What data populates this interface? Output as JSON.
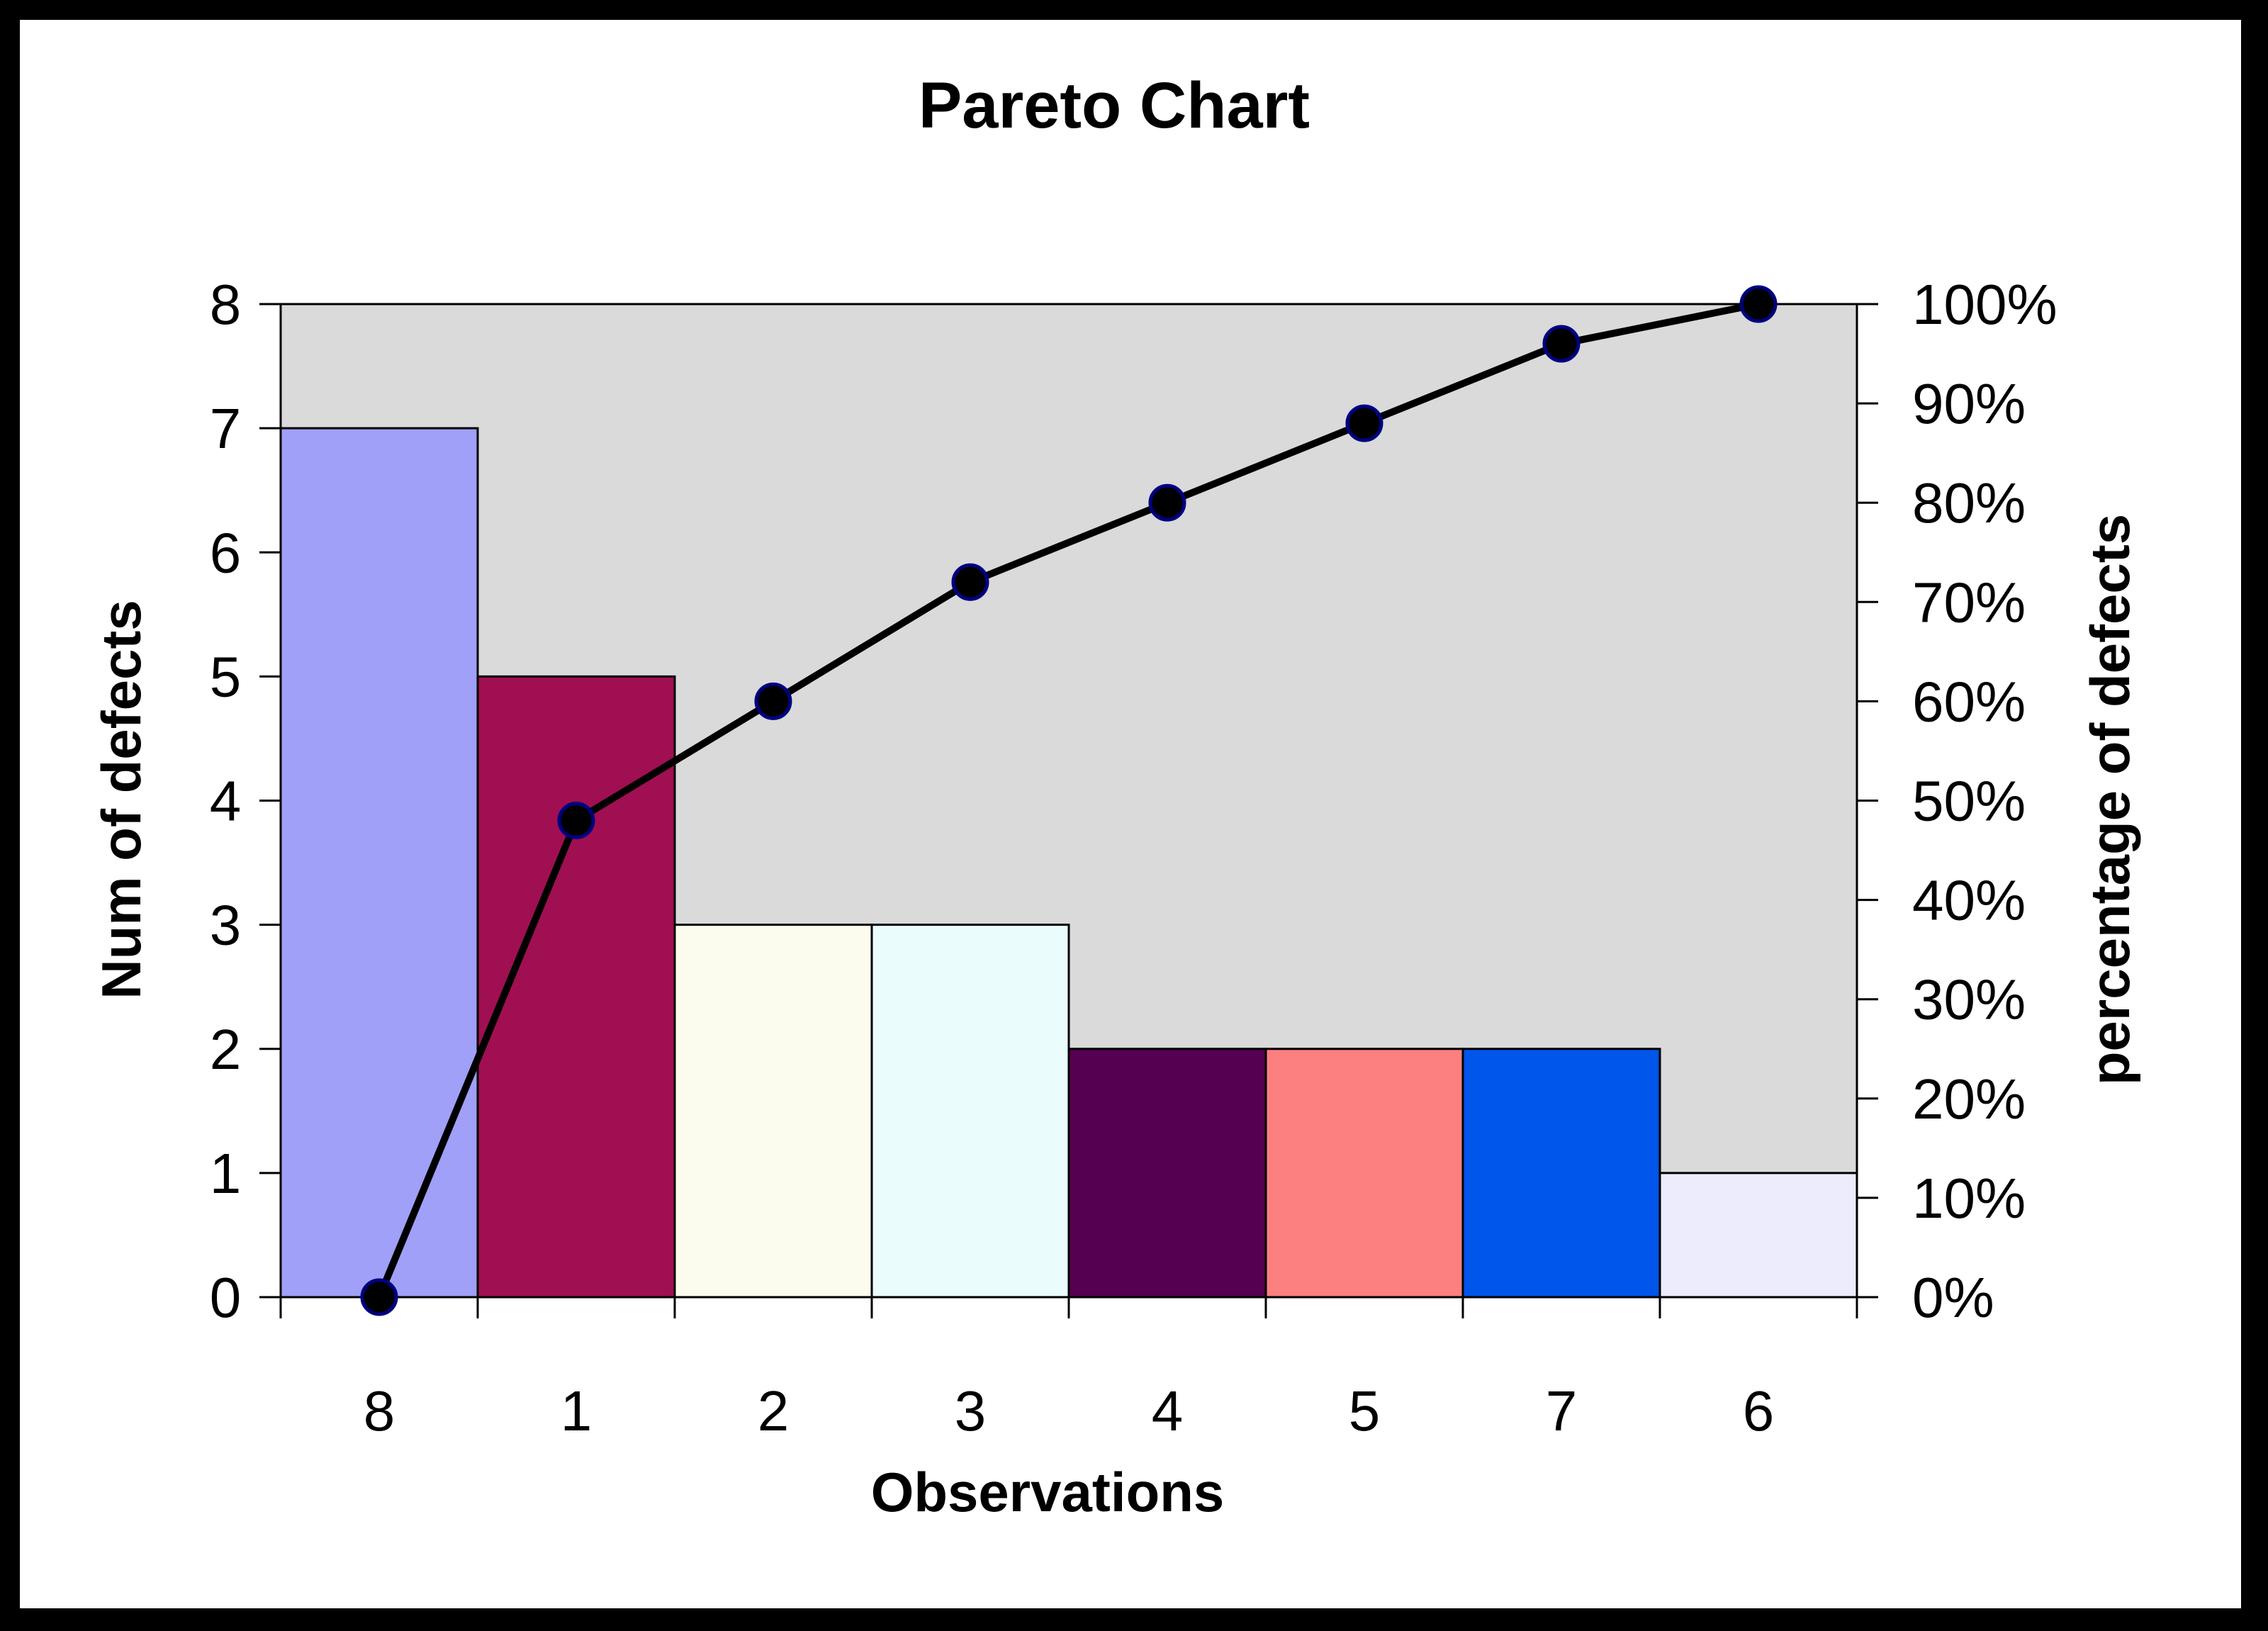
{
  "chart_data": {
    "type": "bar",
    "title": "Pareto Chart",
    "xlabel": "Observations",
    "ylabel": "Num of defects",
    "y2label": "percentage of defects",
    "categories": [
      "8",
      "1",
      "2",
      "3",
      "4",
      "5",
      "7",
      "6"
    ],
    "values": [
      7,
      5,
      3,
      3,
      2,
      2,
      2,
      1
    ],
    "bar_colors": [
      "#a0a0f8",
      "#a00f52",
      "#fcfcee",
      "#ebfcfc",
      "#550050",
      "#fc8080",
      "#0055ea",
      "#ececfc"
    ],
    "ylim": [
      0,
      8
    ],
    "y_ticks": [
      "0",
      "1",
      "2",
      "3",
      "4",
      "5",
      "6",
      "7",
      "8"
    ],
    "y2lim": [
      0,
      100
    ],
    "y2_ticks": [
      "0%",
      "10%",
      "20%",
      "30%",
      "40%",
      "50%",
      "60%",
      "70%",
      "80%",
      "90%",
      "100%"
    ],
    "series": [
      {
        "type": "line",
        "axis": "right",
        "values": [
          0,
          48,
          60,
          72,
          80,
          88,
          96,
          100
        ]
      }
    ],
    "plot_background": "#dadada",
    "line_color": "#000000",
    "marker_edge_color": "#000080",
    "grid": false,
    "legend": "none"
  }
}
